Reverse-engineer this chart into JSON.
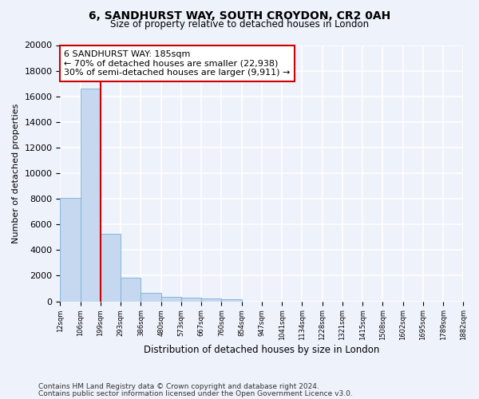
{
  "title1": "6, SANDHURST WAY, SOUTH CROYDON, CR2 0AH",
  "title2": "Size of property relative to detached houses in London",
  "xlabel": "Distribution of detached houses by size in London",
  "ylabel": "Number of detached properties",
  "bar_values": [
    8100,
    16600,
    5300,
    1850,
    650,
    350,
    270,
    200,
    150,
    0,
    0,
    0,
    0,
    0,
    0,
    0,
    0,
    0,
    0,
    0
  ],
  "categories": [
    "12sqm",
    "106sqm",
    "199sqm",
    "293sqm",
    "386sqm",
    "480sqm",
    "573sqm",
    "667sqm",
    "760sqm",
    "854sqm",
    "947sqm",
    "1041sqm",
    "1134sqm",
    "1228sqm",
    "1321sqm",
    "1415sqm",
    "1508sqm",
    "1602sqm",
    "1695sqm",
    "1789sqm",
    "1882sqm"
  ],
  "bar_color": "#c5d8ef",
  "bar_edge_color": "#7aafd4",
  "vline_color": "#cc0000",
  "annotation_text": "6 SANDHURST WAY: 185sqm\n← 70% of detached houses are smaller (22,938)\n30% of semi-detached houses are larger (9,911) →",
  "annotation_box_color": "#ffffff",
  "annotation_border_color": "#cc0000",
  "ylim": [
    0,
    20000
  ],
  "yticks": [
    0,
    2000,
    4000,
    6000,
    8000,
    10000,
    12000,
    14000,
    16000,
    18000,
    20000
  ],
  "footnote1": "Contains HM Land Registry data © Crown copyright and database right 2024.",
  "footnote2": "Contains public sector information licensed under the Open Government Licence v3.0.",
  "bg_color": "#eef2fb",
  "plot_bg_color": "#eef2fb",
  "grid_color": "#ffffff"
}
